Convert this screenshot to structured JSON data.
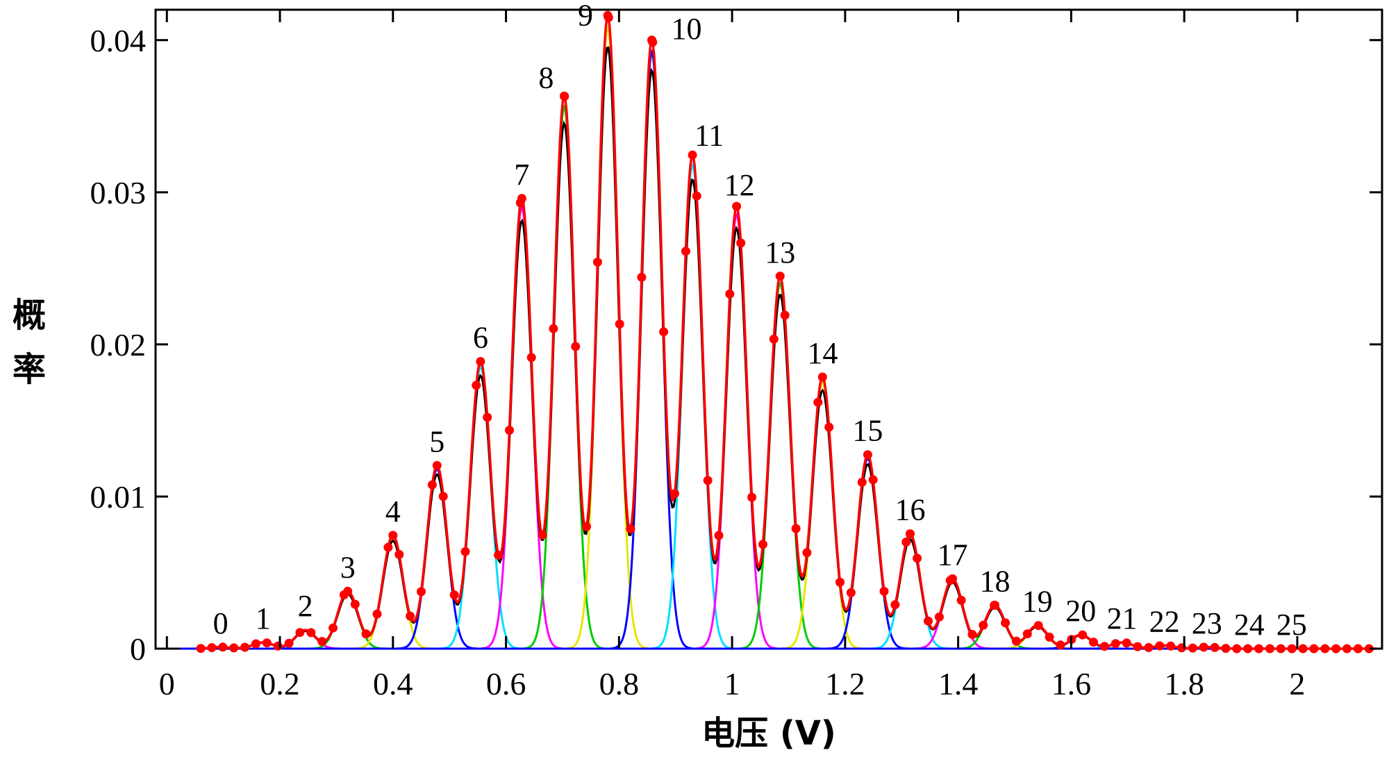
{
  "chart_data": {
    "type": "line",
    "xlabel": "电压 (V)",
    "ylabel_chars": [
      "概",
      "率"
    ],
    "xlim": [
      -0.02,
      2.15
    ],
    "ylim": [
      0,
      0.042
    ],
    "x_ticks": [
      {
        "v": 0,
        "label": "0"
      },
      {
        "v": 0.2,
        "label": "0.2"
      },
      {
        "v": 0.4,
        "label": "0.4"
      },
      {
        "v": 0.6,
        "label": "0.6"
      },
      {
        "v": 0.8,
        "label": "0.8"
      },
      {
        "v": 1.0,
        "label": "1"
      },
      {
        "v": 1.2,
        "label": "1.2"
      },
      {
        "v": 1.4,
        "label": "1.4"
      },
      {
        "v": 1.6,
        "label": "1.6"
      },
      {
        "v": 1.8,
        "label": "1.8"
      },
      {
        "v": 2.0,
        "label": "2"
      }
    ],
    "y_ticks": [
      {
        "v": 0,
        "label": "0"
      },
      {
        "v": 0.01,
        "label": "0.01"
      },
      {
        "v": 0.02,
        "label": "0.02"
      },
      {
        "v": 0.03,
        "label": "0.03"
      },
      {
        "v": 0.04,
        "label": "0.04"
      }
    ],
    "peak_width": 0.018,
    "component_colors": [
      "#0000ff",
      "#00e0ff",
      "#ff00ff",
      "#00cc00",
      "#e6e600"
    ],
    "series_colors": {
      "fit": "#000000",
      "measured": "#ff0000"
    },
    "peaks": [
      {
        "n": "0",
        "x": 0.095,
        "y": 0.0001
      },
      {
        "n": "1",
        "x": 0.17,
        "y": 0.0004
      },
      {
        "n": "2",
        "x": 0.245,
        "y": 0.0012
      },
      {
        "n": "3",
        "x": 0.32,
        "y": 0.0037
      },
      {
        "n": "4",
        "x": 0.4,
        "y": 0.0073
      },
      {
        "n": "5",
        "x": 0.478,
        "y": 0.0118
      },
      {
        "n": "6",
        "x": 0.555,
        "y": 0.0185
      },
      {
        "n": "7",
        "x": 0.628,
        "y": 0.029
      },
      {
        "n": "8",
        "x": 0.703,
        "y": 0.0356
      },
      {
        "n": "9",
        "x": 0.78,
        "y": 0.0408
      },
      {
        "n": "10",
        "x": 0.858,
        "y": 0.0392
      },
      {
        "n": "11",
        "x": 0.93,
        "y": 0.0318
      },
      {
        "n": "12",
        "x": 1.008,
        "y": 0.0285
      },
      {
        "n": "13",
        "x": 1.085,
        "y": 0.024
      },
      {
        "n": "14",
        "x": 1.16,
        "y": 0.0175
      },
      {
        "n": "15",
        "x": 1.24,
        "y": 0.0125
      },
      {
        "n": "16",
        "x": 1.315,
        "y": 0.0074
      },
      {
        "n": "17",
        "x": 1.39,
        "y": 0.0045
      },
      {
        "n": "18",
        "x": 1.465,
        "y": 0.0028
      },
      {
        "n": "19",
        "x": 1.54,
        "y": 0.0015
      },
      {
        "n": "20",
        "x": 1.617,
        "y": 0.0009
      },
      {
        "n": "21",
        "x": 1.69,
        "y": 0.0004
      },
      {
        "n": "22",
        "x": 1.765,
        "y": 0.0002
      },
      {
        "n": "23",
        "x": 1.84,
        "y": 0.0001
      },
      {
        "n": "24",
        "x": 1.915,
        "y": 0.0
      },
      {
        "n": "25",
        "x": 1.99,
        "y": 0.0
      }
    ]
  }
}
